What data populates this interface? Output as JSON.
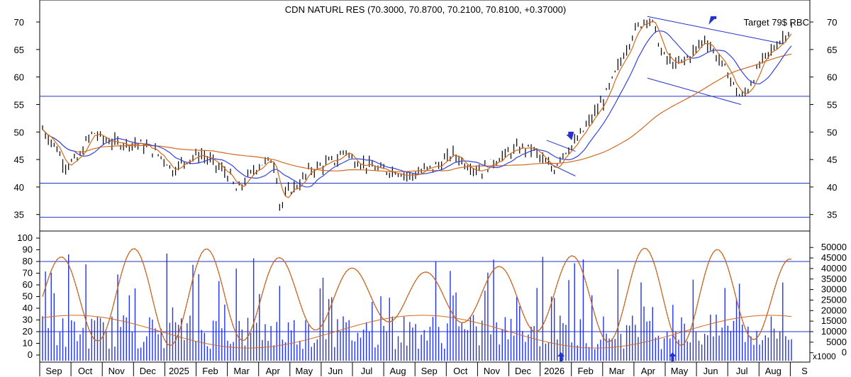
{
  "chart_data": [
    {
      "type": "candlestick",
      "title": "CDN NATURL RES (70.3000, 70.8700, 70.2100, 70.8100, +0.37000)",
      "annotation": "Target 79$ RBC",
      "y_ticks": [
        35,
        40,
        45,
        50,
        55,
        60,
        65,
        70
      ],
      "ylim": [
        32,
        74
      ],
      "horizontal_levels": [
        56.5,
        40.7,
        34.5
      ],
      "ma_colors": {
        "fast": "#d2691e",
        "mid": "#3344dd",
        "slow": "#d2691e"
      },
      "price_path": [
        [
          0,
          50.5
        ],
        [
          0.02,
          47
        ],
        [
          0.03,
          44
        ],
        [
          0.05,
          45
        ],
        [
          0.06,
          48
        ],
        [
          0.07,
          50
        ],
        [
          0.08,
          49
        ],
        [
          0.1,
          48
        ],
        [
          0.13,
          48
        ],
        [
          0.15,
          47
        ],
        [
          0.17,
          45
        ],
        [
          0.18,
          43
        ],
        [
          0.2,
          45
        ],
        [
          0.22,
          46
        ],
        [
          0.24,
          44
        ],
        [
          0.25,
          43
        ],
        [
          0.26,
          42
        ],
        [
          0.27,
          39
        ],
        [
          0.28,
          41
        ],
        [
          0.3,
          44
        ],
        [
          0.32,
          45
        ],
        [
          0.325,
          42
        ],
        [
          0.33,
          36
        ],
        [
          0.34,
          39
        ],
        [
          0.36,
          41
        ],
        [
          0.37,
          43
        ],
        [
          0.39,
          44
        ],
        [
          0.41,
          45
        ],
        [
          0.42,
          47
        ],
        [
          0.43,
          45
        ],
        [
          0.45,
          44
        ],
        [
          0.47,
          43
        ],
        [
          0.49,
          43
        ],
        [
          0.51,
          42
        ],
        [
          0.53,
          43
        ],
        [
          0.55,
          44
        ],
        [
          0.57,
          46
        ],
        [
          0.59,
          44
        ],
        [
          0.61,
          43
        ],
        [
          0.63,
          45
        ],
        [
          0.66,
          47
        ],
        [
          0.68,
          47
        ],
        [
          0.7,
          44
        ],
        [
          0.71,
          43
        ],
        [
          0.72,
          46
        ],
        [
          0.74,
          48
        ],
        [
          0.76,
          52
        ],
        [
          0.78,
          56
        ],
        [
          0.8,
          62
        ],
        [
          0.82,
          68
        ],
        [
          0.84,
          71
        ],
        [
          0.85,
          69
        ],
        [
          0.86,
          64
        ],
        [
          0.88,
          62
        ],
        [
          0.9,
          64
        ],
        [
          0.92,
          67
        ],
        [
          0.93,
          65
        ],
        [
          0.95,
          61
        ],
        [
          0.97,
          56
        ],
        [
          0.98,
          58
        ],
        [
          1.0,
          63
        ],
        [
          1.02,
          66
        ],
        [
          1.04,
          69
        ]
      ],
      "target": 79,
      "indicator": {
        "y_ticks": [
          0,
          10,
          20,
          30,
          40,
          50,
          60,
          70,
          80,
          90,
          100
        ],
        "levels": [
          80,
          20
        ],
        "volume_ticks": [
          0,
          5000,
          10000,
          15000,
          20000,
          25000,
          30000,
          35000,
          40000,
          45000,
          50000
        ],
        "volume_unit": "x1000"
      },
      "x_labels": [
        "Sep",
        "Oct",
        "Nov",
        "Dec",
        "2025",
        "Feb",
        "Mar",
        "Apr",
        "May",
        "Jun",
        "Jul",
        "Aug",
        "Sep",
        "Oct",
        "Nov",
        "Dec",
        "2026",
        "Feb",
        "Mar",
        "Apr",
        "May",
        "Jun",
        "Jul",
        "Aug",
        "S"
      ]
    }
  ]
}
